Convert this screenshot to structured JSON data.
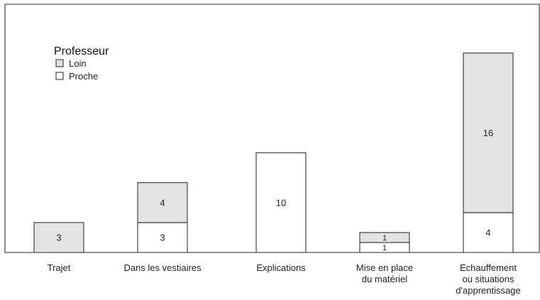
{
  "chart_data": {
    "type": "bar",
    "stacked": true,
    "categories": [
      [
        "Trajet"
      ],
      [
        "Dans les vestiaires"
      ],
      [
        "Explications"
      ],
      [
        "Mise en place",
        "du matériel"
      ],
      [
        "Echauffement",
        "ou situations",
        "d'apprentissage"
      ]
    ],
    "series": [
      {
        "name": "Proche",
        "values": [
          0,
          3,
          10,
          1,
          4
        ]
      },
      {
        "name": "Loin",
        "values": [
          3,
          4,
          0,
          1,
          16
        ]
      }
    ],
    "colors": {
      "Loin": "#e3e3e1",
      "Proche": "#ffffff",
      "stroke": "#222222"
    },
    "legend": {
      "title": "Professeur",
      "entries": [
        "Loin",
        "Proche"
      ],
      "placement": "top-left"
    },
    "ylim": [
      0,
      25
    ],
    "grid": false
  }
}
